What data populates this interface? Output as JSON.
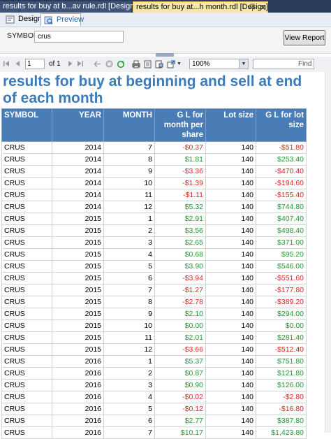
{
  "doc_tabs": [
    {
      "label": "results for buy at b...av rule.rdl [Design]"
    },
    {
      "label": "results for buy at...h month.rdl [Design]"
    }
  ],
  "view_tabs": {
    "design": "Design",
    "preview": "Preview"
  },
  "params": {
    "symbol_label": "SYMBOL",
    "symbol_value": "crus",
    "view_report_label": "View Report"
  },
  "toolbar": {
    "page": "1",
    "of_label": "of 1",
    "zoom": "100%",
    "find_label": "Find"
  },
  "icons": [
    "pin-icon",
    "close-icon",
    "design-icon",
    "preview-icon",
    "first-page-icon",
    "prev-page-icon",
    "next-page-icon",
    "last-page-icon",
    "back-icon",
    "stop-icon",
    "refresh-icon",
    "print-icon",
    "print-layout-icon",
    "page-setup-icon",
    "export-icon",
    "chevron-down-icon"
  ],
  "colors": {
    "header_bg": "#4a7db5",
    "title": "#3d7ab8",
    "negative": "#e0261e",
    "positive": "#1f9a2e"
  },
  "report": {
    "title": "results for buy at beginning and sell at end of each month",
    "columns": [
      "SYMBOL",
      "YEAR",
      "MONTH",
      "G L for month per share",
      "Lot size",
      "G L for lot size"
    ],
    "rows": [
      [
        "CRUS",
        "2014",
        "7",
        "-$0.37",
        "140",
        "-$51.80"
      ],
      [
        "CRUS",
        "2014",
        "8",
        "$1.81",
        "140",
        "$253.40"
      ],
      [
        "CRUS",
        "2014",
        "9",
        "-$3.36",
        "140",
        "-$470.40"
      ],
      [
        "CRUS",
        "2014",
        "10",
        "-$1.39",
        "140",
        "-$194.60"
      ],
      [
        "CRUS",
        "2014",
        "11",
        "-$1.11",
        "140",
        "-$155.40"
      ],
      [
        "CRUS",
        "2014",
        "12",
        "$5.32",
        "140",
        "$744.80"
      ],
      [
        "CRUS",
        "2015",
        "1",
        "$2.91",
        "140",
        "$407.40"
      ],
      [
        "CRUS",
        "2015",
        "2",
        "$3.56",
        "140",
        "$498.40"
      ],
      [
        "CRUS",
        "2015",
        "3",
        "$2.65",
        "140",
        "$371.00"
      ],
      [
        "CRUS",
        "2015",
        "4",
        "$0.68",
        "140",
        "$95.20"
      ],
      [
        "CRUS",
        "2015",
        "5",
        "$3.90",
        "140",
        "$546.00"
      ],
      [
        "CRUS",
        "2015",
        "6",
        "-$3.94",
        "140",
        "-$551.60"
      ],
      [
        "CRUS",
        "2015",
        "7",
        "-$1.27",
        "140",
        "-$177.80"
      ],
      [
        "CRUS",
        "2015",
        "8",
        "-$2.78",
        "140",
        "-$389.20"
      ],
      [
        "CRUS",
        "2015",
        "9",
        "$2.10",
        "140",
        "$294.00"
      ],
      [
        "CRUS",
        "2015",
        "10",
        "$0.00",
        "140",
        "$0.00"
      ],
      [
        "CRUS",
        "2015",
        "11",
        "$2.01",
        "140",
        "$281.40"
      ],
      [
        "CRUS",
        "2015",
        "12",
        "-$3.66",
        "140",
        "-$512.40"
      ],
      [
        "CRUS",
        "2016",
        "1",
        "$5.37",
        "140",
        "$751.80"
      ],
      [
        "CRUS",
        "2016",
        "2",
        "$0.87",
        "140",
        "$121.80"
      ],
      [
        "CRUS",
        "2016",
        "3",
        "$0.90",
        "140",
        "$126.00"
      ],
      [
        "CRUS",
        "2016",
        "4",
        "-$0.02",
        "140",
        "-$2.80"
      ],
      [
        "CRUS",
        "2016",
        "5",
        "-$0.12",
        "140",
        "-$16.80"
      ],
      [
        "CRUS",
        "2016",
        "6",
        "$2.77",
        "140",
        "$387.80"
      ],
      [
        "CRUS",
        "2016",
        "7",
        "$10.17",
        "140",
        "$1,423.80"
      ]
    ]
  }
}
